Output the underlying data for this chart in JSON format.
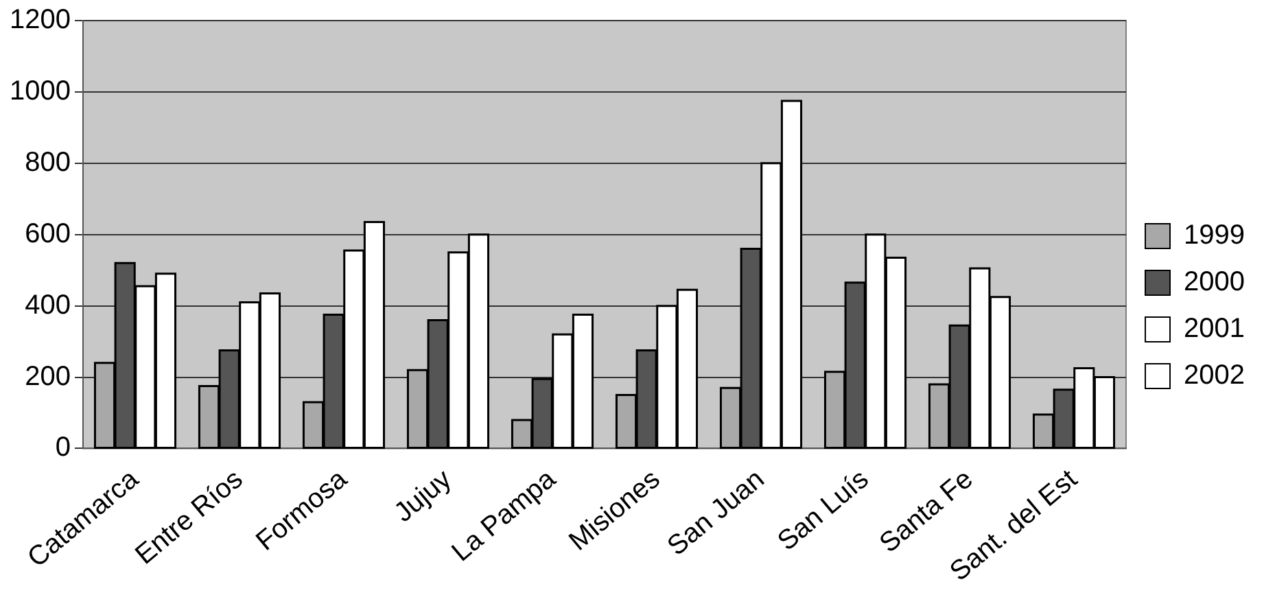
{
  "chart_data": {
    "type": "bar",
    "categories": [
      "Catamarca",
      "Entre Ríos",
      "Formosa",
      "Jujuy",
      "La Pampa",
      "Misiones",
      "San Juan",
      "San Luís",
      "Santa Fe",
      "Sant. del Est"
    ],
    "series": [
      {
        "name": "1999",
        "color": "#a8a8a8",
        "values": [
          240,
          175,
          130,
          220,
          80,
          150,
          170,
          215,
          180,
          95
        ]
      },
      {
        "name": "2000",
        "color": "#555555",
        "values": [
          520,
          275,
          375,
          360,
          195,
          275,
          560,
          465,
          345,
          165
        ]
      },
      {
        "name": "2001",
        "color": "#ffffff",
        "values": [
          455,
          410,
          555,
          550,
          320,
          400,
          800,
          600,
          505,
          225
        ]
      },
      {
        "name": "2002",
        "color": "#ffffff",
        "values": [
          490,
          435,
          635,
          600,
          375,
          445,
          975,
          535,
          425,
          200
        ]
      }
    ],
    "ylim": [
      0,
      1200
    ],
    "yticks": [
      0,
      200,
      400,
      600,
      800,
      1000,
      1200
    ],
    "grid": "y",
    "legend": "right"
  }
}
